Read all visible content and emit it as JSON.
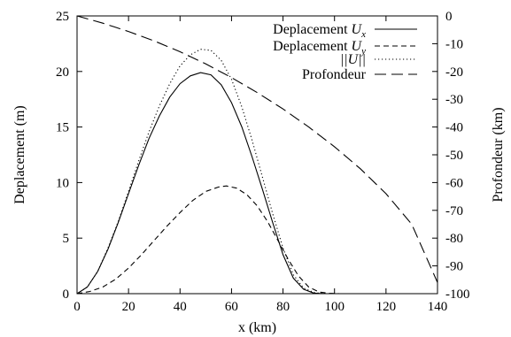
{
  "chart_data": {
    "type": "line",
    "xlabel": "x (km)",
    "ylabel_left": "Deplacement (m)",
    "ylabel_right": "Profondeur (km)",
    "xlim": [
      0,
      140
    ],
    "ylim_left": [
      0,
      25
    ],
    "ylim_right": [
      -100,
      0
    ],
    "xticks": [
      0,
      20,
      40,
      60,
      80,
      100,
      120,
      140
    ],
    "yticks_left": [
      0,
      5,
      10,
      15,
      20,
      25
    ],
    "yticks_right": [
      -100,
      -90,
      -80,
      -70,
      -60,
      -50,
      -40,
      -30,
      -20,
      -10,
      0
    ],
    "grid": false,
    "legend_position": "top-right",
    "series": [
      {
        "name": "Deplacement Ux",
        "legend_base": "Deplacement ",
        "legend_symbol": "U",
        "legend_sub": "x",
        "axis": "left",
        "style": "solid",
        "x": [
          0,
          4,
          8,
          12,
          16,
          20,
          24,
          28,
          32,
          36,
          40,
          44,
          48,
          52,
          56,
          60,
          64,
          68,
          72,
          76,
          80,
          84,
          88,
          92,
          96,
          100,
          140
        ],
        "y": [
          0,
          0.6,
          2.0,
          4.0,
          6.4,
          9.0,
          11.6,
          14.0,
          16.0,
          17.7,
          18.9,
          19.6,
          19.9,
          19.7,
          18.8,
          17.2,
          15.0,
          12.3,
          9.4,
          6.4,
          3.5,
          1.4,
          0.4,
          0.05,
          0,
          0,
          0
        ]
      },
      {
        "name": "Deplacement Uy",
        "legend_base": "Deplacement ",
        "legend_symbol": "U",
        "legend_sub": "y",
        "axis": "left",
        "style": "dashed",
        "x": [
          0,
          5,
          10,
          15,
          20,
          25,
          30,
          35,
          40,
          45,
          50,
          55,
          58,
          62,
          66,
          70,
          74,
          78,
          82,
          86,
          90,
          94,
          98,
          102,
          140
        ],
        "y": [
          0,
          0.2,
          0.6,
          1.3,
          2.3,
          3.5,
          4.8,
          6.1,
          7.3,
          8.4,
          9.2,
          9.6,
          9.7,
          9.5,
          8.9,
          7.9,
          6.5,
          4.8,
          3.1,
          1.6,
          0.6,
          0.15,
          0.03,
          0,
          0
        ]
      },
      {
        "name": "||U||",
        "legend_base": "",
        "legend_symbol": "||U||",
        "legend_sub": "",
        "axis": "left",
        "style": "dotted",
        "x": [
          0,
          4,
          8,
          12,
          16,
          20,
          24,
          28,
          32,
          36,
          40,
          44,
          48,
          52,
          56,
          60,
          64,
          68,
          72,
          76,
          80,
          84,
          88,
          92,
          96,
          100,
          140
        ],
        "y": [
          0,
          0.6,
          2.0,
          4.1,
          6.5,
          9.2,
          12.0,
          14.6,
          16.9,
          18.9,
          20.5,
          21.5,
          22.0,
          21.9,
          21.0,
          19.3,
          16.8,
          13.8,
          10.5,
          7.2,
          4.1,
          1.7,
          0.5,
          0.1,
          0,
          0,
          0
        ]
      },
      {
        "name": "Profondeur",
        "legend_base": "Profondeur",
        "legend_symbol": "",
        "legend_sub": "",
        "axis": "right",
        "style": "longdash",
        "x": [
          0,
          10,
          20,
          30,
          40,
          50,
          60,
          70,
          80,
          90,
          100,
          110,
          120,
          130,
          140
        ],
        "y": [
          0,
          -2.6,
          -5.6,
          -9.0,
          -12.9,
          -17.3,
          -22.2,
          -27.6,
          -33.5,
          -40.0,
          -47.1,
          -55.0,
          -64.0,
          -75.0,
          -96.0
        ]
      }
    ]
  }
}
